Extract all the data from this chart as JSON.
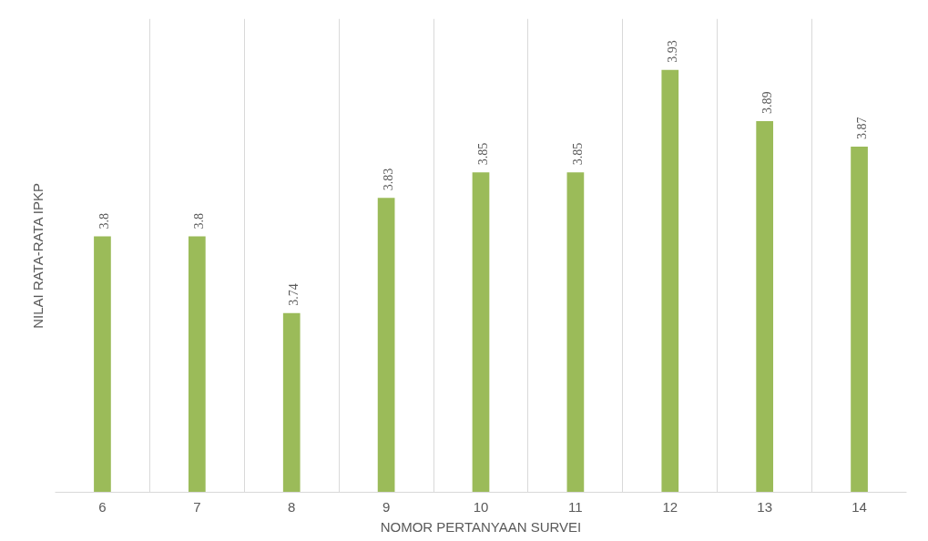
{
  "chart_data": {
    "type": "bar",
    "xlabel": "NOMOR PERTANYAAN SURVEI",
    "ylabel": "NILAI RATA-RATA IPKP",
    "categories": [
      "6",
      "7",
      "8",
      "9",
      "10",
      "11",
      "12",
      "13",
      "14"
    ],
    "values": [
      3.8,
      3.8,
      3.74,
      3.83,
      3.85,
      3.85,
      3.93,
      3.89,
      3.87
    ],
    "color": "#9bbb59",
    "ylim": [
      3.6,
      3.97
    ],
    "data_labels": true,
    "grid": "x",
    "tick_labels": "x"
  }
}
